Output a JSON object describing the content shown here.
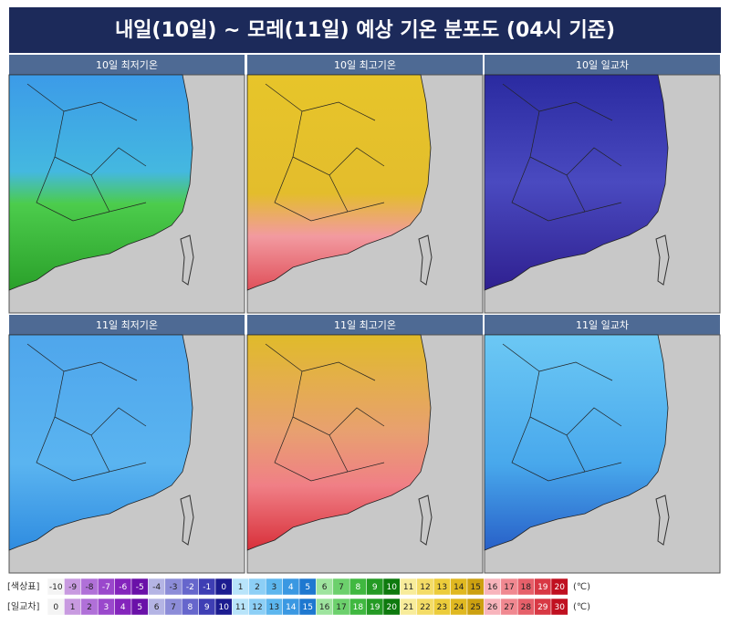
{
  "title": "내일(10일) ~ 모레(11일) 예상 기온 분포도 (04시 기준)",
  "panels": [
    {
      "label": "10일 최저기온"
    },
    {
      "label": "10일 최고기온"
    },
    {
      "label": "10일 일교차"
    },
    {
      "label": "11일 최저기온"
    },
    {
      "label": "11일 최고기온"
    },
    {
      "label": "11일 일교차"
    }
  ],
  "legend": {
    "rows": [
      {
        "label": "[색상표]",
        "values": [
          -10,
          -9,
          -8,
          -7,
          -6,
          -5,
          -4,
          -3,
          -2,
          -1,
          0,
          1,
          2,
          3,
          4,
          5,
          6,
          7,
          8,
          9,
          10,
          11,
          12,
          13,
          14,
          15,
          16,
          17,
          18,
          19,
          20
        ],
        "unit": "(℃)"
      },
      {
        "label": "[일교차]",
        "values": [
          0,
          1,
          2,
          3,
          4,
          5,
          6,
          7,
          8,
          9,
          10,
          11,
          12,
          13,
          14,
          15,
          16,
          17,
          18,
          19,
          20,
          21,
          22,
          23,
          24,
          25,
          26,
          27,
          28,
          29,
          30
        ],
        "unit": "(℃)"
      }
    ]
  }
}
